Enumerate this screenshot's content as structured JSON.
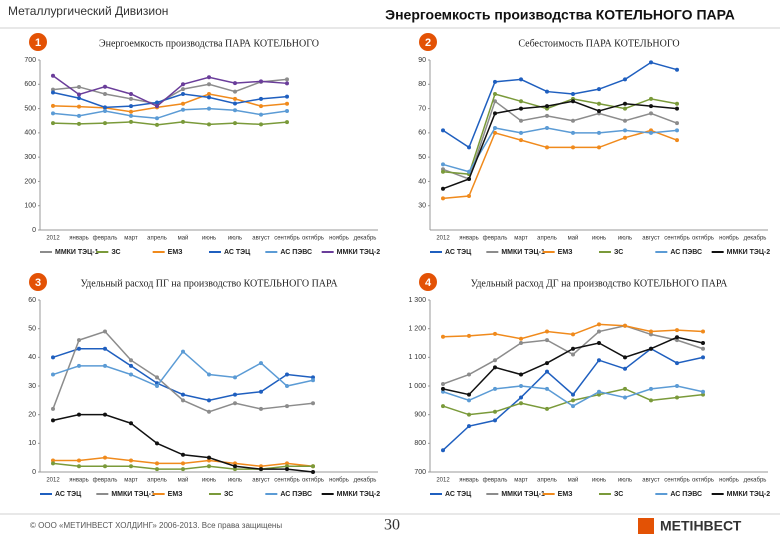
{
  "header": {
    "division": "Металлургический Дивизион",
    "title": "Энергоемкость производства КОТЕЛЬНОГО ПАРА"
  },
  "footer": {
    "copyright": "© ООО «МЕТИНВЕСТ ХОЛДИНГ» 2006-2013. Все права защищены",
    "page": "30",
    "logo": "МЕТІНВЕСТ"
  },
  "chart_data": [
    {
      "type": "line",
      "badge": "1",
      "title": "Энергоемкость производства ПАРА КОТЕЛЬНОГО",
      "categories": [
        "2012",
        "январь",
        "февраль",
        "март",
        "апрель",
        "май",
        "июнь",
        "июль",
        "август",
        "сентябрь",
        "октябрь",
        "ноябрь",
        "декабрь"
      ],
      "ylim": [
        0,
        700
      ],
      "yticks": [
        0,
        100,
        200,
        300,
        400,
        500,
        600,
        700
      ],
      "grid": false,
      "series": [
        {
          "name": "ММКИ ТЭЦ-1",
          "color": "#8c8c8c",
          "values": [
            578,
            589,
            560,
            540,
            520,
            580,
            600,
            570,
            610,
            620,
            null,
            null,
            null
          ]
        },
        {
          "name": "ЗС",
          "color": "#7a9a3a",
          "values": [
            440,
            437,
            440,
            445,
            433,
            445,
            435,
            440,
            435,
            444,
            null,
            null,
            null
          ]
        },
        {
          "name": "ЕМЗ",
          "color": "#f08a1c",
          "values": [
            511,
            508,
            503,
            487,
            505,
            520,
            560,
            540,
            510,
            520,
            null,
            null,
            null
          ]
        },
        {
          "name": "АС ТЭЦ",
          "color": "#1f5fbf",
          "values": [
            566,
            543,
            505,
            510,
            525,
            560,
            546,
            521,
            540,
            549,
            null,
            null,
            null
          ]
        },
        {
          "name": "АС ПЭВС",
          "color": "#5b9bd5",
          "values": [
            480,
            470,
            490,
            470,
            460,
            495,
            500,
            493,
            475,
            490,
            null,
            null,
            null
          ]
        },
        {
          "name": "ММКИ ТЭЦ-2",
          "color": "#6a3d9a",
          "values": [
            635,
            558,
            590,
            560,
            510,
            600,
            629,
            605,
            612,
            604,
            null,
            null,
            null
          ]
        }
      ]
    },
    {
      "type": "line",
      "badge": "2",
      "title": "Себестоимость ПАРА КОТЕЛЬНОГО",
      "categories": [
        "2012",
        "январь",
        "февраль",
        "март",
        "апрель",
        "май",
        "июнь",
        "июль",
        "август",
        "сентябрь",
        "октябрь",
        "ноябрь",
        "декабрь"
      ],
      "ylim": [
        20,
        90
      ],
      "yticks": [
        30,
        40,
        50,
        60,
        70,
        80,
        90
      ],
      "grid": false,
      "series": [
        {
          "name": "АС ТЭЦ",
          "color": "#1f5fbf",
          "values": [
            61,
            54,
            81,
            82,
            77,
            76,
            78,
            82,
            89,
            86,
            null,
            null,
            null
          ]
        },
        {
          "name": "ММКИ ТЭЦ-1",
          "color": "#8c8c8c",
          "values": [
            45,
            41,
            73,
            65,
            67,
            65,
            68,
            65,
            68,
            64,
            null,
            null,
            null
          ]
        },
        {
          "name": "ЕМЗ",
          "color": "#f08a1c",
          "values": [
            33,
            34,
            60,
            57,
            54,
            54,
            54,
            58,
            61,
            57,
            null,
            null,
            null
          ]
        },
        {
          "name": "ЗС",
          "color": "#7a9a3a",
          "values": [
            44,
            43,
            76,
            73,
            70,
            74,
            72,
            70,
            74,
            72,
            null,
            null,
            null
          ]
        },
        {
          "name": "АС ПЭВС",
          "color": "#5b9bd5",
          "values": [
            47,
            44,
            62,
            60,
            62,
            60,
            60,
            61,
            60,
            61,
            null,
            null,
            null
          ]
        },
        {
          "name": "ММКИ ТЭЦ-2",
          "color": "#111111",
          "values": [
            37,
            41,
            68,
            70,
            71,
            73,
            69,
            72,
            71,
            70,
            null,
            null,
            null
          ]
        }
      ]
    },
    {
      "type": "line",
      "badge": "3",
      "title": "Удельный расход ПГ на производство КОТЕЛЬНОГО ПАРА",
      "categories": [
        "2012",
        "январь",
        "февраль",
        "март",
        "апрель",
        "май",
        "июнь",
        "июль",
        "август",
        "сентябрь",
        "октябрь",
        "ноябрь",
        "декабрь"
      ],
      "ylim": [
        0,
        60
      ],
      "yticks": [
        0,
        10,
        20,
        30,
        40,
        50,
        60
      ],
      "grid": false,
      "series": [
        {
          "name": "АС ТЭЦ",
          "color": "#1f5fbf",
          "values": [
            40,
            43,
            43,
            37,
            31,
            27,
            25,
            27,
            28,
            34,
            33,
            null,
            null
          ]
        },
        {
          "name": "ММКИ ТЭЦ-1",
          "color": "#8c8c8c",
          "values": [
            22,
            46,
            49,
            39,
            33,
            25,
            21,
            24,
            22,
            23,
            24,
            null,
            null
          ]
        },
        {
          "name": "ЕМЗ",
          "color": "#f08a1c",
          "values": [
            4,
            4,
            5,
            4,
            3,
            3,
            4,
            3,
            2,
            3,
            2,
            null,
            null
          ]
        },
        {
          "name": "ЗС",
          "color": "#7a9a3a",
          "values": [
            3,
            2,
            2,
            2,
            1,
            1,
            2,
            1,
            1,
            2,
            2,
            null,
            null
          ]
        },
        {
          "name": "АС ПЭВС",
          "color": "#5b9bd5",
          "values": [
            34,
            37,
            37,
            34,
            30,
            42,
            34,
            33,
            38,
            30,
            32,
            null,
            null
          ]
        },
        {
          "name": "ММКИ ТЭЦ-2",
          "color": "#111111",
          "values": [
            18,
            20,
            20,
            17,
            10,
            6,
            5,
            2,
            1,
            1,
            0,
            null,
            null
          ]
        }
      ]
    },
    {
      "type": "line",
      "badge": "4",
      "title": "Удельный расход ДГ на производство КОТЕЛЬНОГО ПАРА",
      "categories": [
        "2012",
        "январь",
        "февраль",
        "март",
        "апрель",
        "май",
        "июнь",
        "июль",
        "август",
        "сентябрь",
        "октябрь",
        "ноябрь",
        "декабрь"
      ],
      "ylim": [
        700,
        1300
      ],
      "yticks": [
        {
          "value": 700,
          "label": "700"
        },
        {
          "value": 800,
          "label": "800"
        },
        {
          "value": 900,
          "label": "900"
        },
        {
          "value": 1000,
          "label": "1 000"
        },
        {
          "value": 1100,
          "label": "1 100"
        },
        {
          "value": 1200,
          "label": "1 200"
        },
        {
          "value": 1300,
          "label": "1 300"
        }
      ],
      "grid": false,
      "series": [
        {
          "name": "АС ТЭЦ",
          "color": "#1f5fbf",
          "values": [
            776,
            860,
            880,
            960,
            1050,
            970,
            1090,
            1060,
            1130,
            1080,
            1100,
            null,
            null
          ]
        },
        {
          "name": "ММКИ ТЭЦ-1",
          "color": "#8c8c8c",
          "values": [
            1007,
            1040,
            1090,
            1150,
            1160,
            1110,
            1190,
            1210,
            1180,
            1160,
            1130,
            null,
            null
          ]
        },
        {
          "name": "ЕМЗ",
          "color": "#f08a1c",
          "values": [
            1172,
            1175,
            1182,
            1165,
            1190,
            1180,
            1215,
            1210,
            1190,
            1195,
            1190,
            null,
            null
          ]
        },
        {
          "name": "ЗС",
          "color": "#7a9a3a",
          "values": [
            930,
            900,
            910,
            940,
            920,
            950,
            970,
            990,
            950,
            960,
            970,
            null,
            null
          ]
        },
        {
          "name": "АС ПЭВС",
          "color": "#5b9bd5",
          "values": [
            980,
            950,
            990,
            1000,
            990,
            930,
            980,
            960,
            990,
            1000,
            980,
            null,
            null
          ]
        },
        {
          "name": "ММКИ ТЭЦ-2",
          "color": "#111111",
          "values": [
            990,
            970,
            1065,
            1040,
            1080,
            1130,
            1150,
            1100,
            1130,
            1170,
            1150,
            null,
            null
          ]
        }
      ]
    }
  ]
}
